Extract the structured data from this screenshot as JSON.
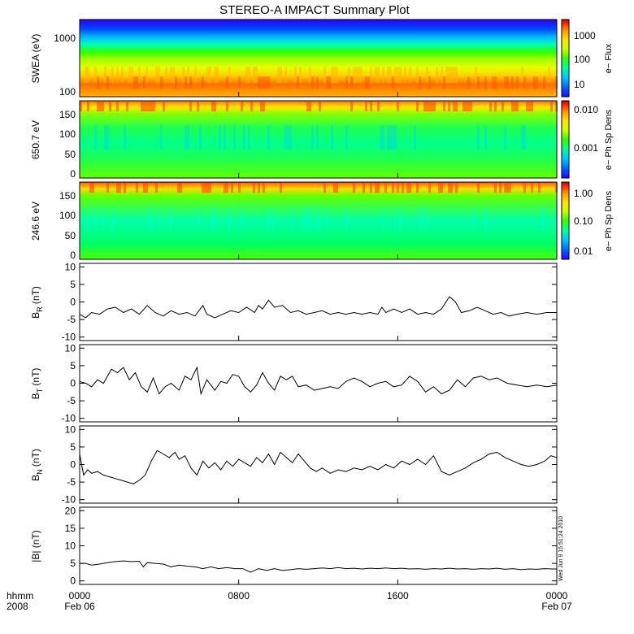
{
  "chart_data": {
    "type": "multi-panel time series / spectrogram",
    "title": "STEREO-A IMPACT Summary Plot",
    "x_axis": {
      "range_hours": [
        0,
        24
      ],
      "ticks": [
        {
          "t": 0,
          "hhmm": "0000",
          "date": "Feb 06"
        },
        {
          "t": 8,
          "hhmm": "0800",
          "date": ""
        },
        {
          "t": 16,
          "hhmm": "1600",
          "date": ""
        },
        {
          "t": 24,
          "hhmm": "0000",
          "date": "Feb 07"
        }
      ],
      "left_label_1": "hhmm",
      "left_label_2": "2008"
    },
    "timestamp": "Wed Jun 9 15:51:24 2010",
    "colorbar_colors": [
      "#2a00ff",
      "#0064ff",
      "#00c8ff",
      "#00ff96",
      "#32ff00",
      "#c8ff00",
      "#ffe600",
      "#ff9600",
      "#ff3200",
      "#d40000"
    ],
    "spectrograms": [
      {
        "id": "swea",
        "ylabel": "SWEA (eV)",
        "yticks": [
          "1000",
          "100"
        ],
        "cb_label": "e− Flux",
        "cb_ticks": [
          "1000",
          "100",
          "10"
        ]
      },
      {
        "id": "pad650",
        "ylabel": "650.7 eV",
        "yticks": [
          "150",
          "100",
          "50",
          "0"
        ],
        "cb_label": "e− Ph Sp Dens",
        "cb_ticks": [
          "0.010",
          "0.001"
        ]
      },
      {
        "id": "pad246",
        "ylabel": "246.6 eV",
        "yticks": [
          "150",
          "100",
          "50",
          "0"
        ],
        "cb_label": "e− Ph Sp Dens",
        "cb_ticks": [
          "1.00",
          "0.10",
          "0.01"
        ]
      }
    ],
    "line_panels": [
      {
        "id": "br",
        "ylabel_base": "B",
        "ylabel_sub": "R",
        "ylabel_unit": "(nT)",
        "ylim": [
          -11,
          11
        ],
        "yticks": [
          10,
          5,
          0,
          -5,
          -10
        ],
        "series": [
          [
            0.0,
            -3.5
          ],
          [
            0.3,
            -4.5
          ],
          [
            0.6,
            -3.0
          ],
          [
            1.0,
            -3.5
          ],
          [
            1.4,
            -2.0
          ],
          [
            1.8,
            -1.5
          ],
          [
            2.2,
            -3.0
          ],
          [
            2.6,
            -2.0
          ],
          [
            3.0,
            -3.5
          ],
          [
            3.4,
            -1.0
          ],
          [
            3.8,
            -3.0
          ],
          [
            4.2,
            -4.0
          ],
          [
            4.6,
            -2.5
          ],
          [
            5.0,
            -3.5
          ],
          [
            5.4,
            -3.0
          ],
          [
            5.8,
            -4.0
          ],
          [
            6.2,
            -1.0
          ],
          [
            6.4,
            -3.5
          ],
          [
            6.8,
            -4.5
          ],
          [
            7.2,
            -3.5
          ],
          [
            7.6,
            -2.5
          ],
          [
            8.0,
            -3.0
          ],
          [
            8.4,
            -1.5
          ],
          [
            8.8,
            -3.0
          ],
          [
            9.0,
            -1.0
          ],
          [
            9.2,
            -2.0
          ],
          [
            9.5,
            0.5
          ],
          [
            9.8,
            -1.5
          ],
          [
            10.2,
            -1.0
          ],
          [
            10.6,
            -3.0
          ],
          [
            11.0,
            -2.5
          ],
          [
            11.4,
            -3.5
          ],
          [
            11.8,
            -3.0
          ],
          [
            12.2,
            -2.5
          ],
          [
            12.6,
            -3.5
          ],
          [
            13.0,
            -3.0
          ],
          [
            13.4,
            -3.5
          ],
          [
            13.8,
            -3.0
          ],
          [
            14.2,
            -3.5
          ],
          [
            14.6,
            -3.0
          ],
          [
            15.0,
            -3.5
          ],
          [
            15.2,
            -1.5
          ],
          [
            15.4,
            -3.0
          ],
          [
            15.8,
            -2.0
          ],
          [
            16.2,
            -3.0
          ],
          [
            16.6,
            -2.0
          ],
          [
            17.0,
            -3.5
          ],
          [
            17.4,
            -3.0
          ],
          [
            17.8,
            -3.5
          ],
          [
            18.2,
            -2.0
          ],
          [
            18.6,
            1.5
          ],
          [
            18.9,
            0.0
          ],
          [
            19.2,
            -3.0
          ],
          [
            19.6,
            -2.5
          ],
          [
            20.0,
            -1.5
          ],
          [
            20.4,
            -2.5
          ],
          [
            20.8,
            -3.5
          ],
          [
            21.2,
            -3.0
          ],
          [
            21.6,
            -4.0
          ],
          [
            22.0,
            -3.5
          ],
          [
            22.5,
            -3.0
          ],
          [
            23.0,
            -3.5
          ],
          [
            23.5,
            -3.0
          ],
          [
            24.0,
            -3.0
          ]
        ]
      },
      {
        "id": "bt",
        "ylabel_base": "B",
        "ylabel_sub": "T",
        "ylabel_unit": "(nT)",
        "ylim": [
          -11,
          11
        ],
        "yticks": [
          10,
          5,
          0,
          -5,
          -10
        ],
        "series": [
          [
            0.0,
            0.5
          ],
          [
            0.3,
            0.0
          ],
          [
            0.6,
            -1.0
          ],
          [
            0.9,
            1.0
          ],
          [
            1.2,
            0.0
          ],
          [
            1.6,
            4.0
          ],
          [
            1.9,
            3.0
          ],
          [
            2.2,
            4.5
          ],
          [
            2.5,
            1.0
          ],
          [
            2.8,
            3.0
          ],
          [
            3.1,
            -1.0
          ],
          [
            3.4,
            -2.5
          ],
          [
            3.7,
            1.5
          ],
          [
            4.0,
            -3.0
          ],
          [
            4.3,
            -1.0
          ],
          [
            4.6,
            0.0
          ],
          [
            5.0,
            -2.0
          ],
          [
            5.3,
            2.0
          ],
          [
            5.6,
            1.0
          ],
          [
            5.9,
            4.5
          ],
          [
            6.1,
            -3.0
          ],
          [
            6.4,
            1.0
          ],
          [
            6.8,
            -2.0
          ],
          [
            7.1,
            0.5
          ],
          [
            7.4,
            0.0
          ],
          [
            7.7,
            2.5
          ],
          [
            8.0,
            2.0
          ],
          [
            8.3,
            -1.0
          ],
          [
            8.6,
            -2.5
          ],
          [
            8.9,
            -0.5
          ],
          [
            9.2,
            3.0
          ],
          [
            9.5,
            0.0
          ],
          [
            9.8,
            -2.0
          ],
          [
            10.1,
            2.0
          ],
          [
            10.4,
            1.0
          ],
          [
            10.7,
            2.0
          ],
          [
            11.0,
            -1.0
          ],
          [
            11.4,
            -0.5
          ],
          [
            11.8,
            -2.0
          ],
          [
            12.2,
            -1.5
          ],
          [
            12.6,
            -1.0
          ],
          [
            13.0,
            -1.5
          ],
          [
            13.4,
            0.5
          ],
          [
            13.8,
            1.5
          ],
          [
            14.2,
            0.5
          ],
          [
            14.6,
            -1.0
          ],
          [
            15.0,
            0.0
          ],
          [
            15.4,
            0.5
          ],
          [
            15.8,
            -1.0
          ],
          [
            16.2,
            -0.5
          ],
          [
            16.6,
            2.0
          ],
          [
            17.0,
            0.5
          ],
          [
            17.4,
            -2.5
          ],
          [
            17.8,
            -1.0
          ],
          [
            18.2,
            -3.0
          ],
          [
            18.6,
            -2.0
          ],
          [
            19.0,
            1.0
          ],
          [
            19.4,
            -1.0
          ],
          [
            19.8,
            1.5
          ],
          [
            20.2,
            2.0
          ],
          [
            20.6,
            1.0
          ],
          [
            21.0,
            1.5
          ],
          [
            21.5,
            0.0
          ],
          [
            22.0,
            -0.5
          ],
          [
            22.5,
            -1.0
          ],
          [
            23.0,
            -0.5
          ],
          [
            23.5,
            -1.0
          ],
          [
            24.0,
            -0.5
          ]
        ]
      },
      {
        "id": "bn",
        "ylabel_base": "B",
        "ylabel_sub": "N",
        "ylabel_unit": "(nT)",
        "ylim": [
          -11,
          11
        ],
        "yticks": [
          10,
          5,
          0,
          -5,
          -10
        ],
        "series": [
          [
            0.0,
            3.0
          ],
          [
            0.2,
            -3.0
          ],
          [
            0.4,
            -1.5
          ],
          [
            0.6,
            -2.5
          ],
          [
            0.9,
            -2.0
          ],
          [
            1.2,
            -3.0
          ],
          [
            1.5,
            -3.5
          ],
          [
            1.8,
            -4.0
          ],
          [
            2.1,
            -4.5
          ],
          [
            2.4,
            -5.0
          ],
          [
            2.7,
            -5.5
          ],
          [
            3.0,
            -4.5
          ],
          [
            3.3,
            -3.0
          ],
          [
            3.6,
            1.0
          ],
          [
            3.9,
            4.0
          ],
          [
            4.2,
            3.0
          ],
          [
            4.5,
            2.0
          ],
          [
            4.8,
            3.5
          ],
          [
            5.0,
            1.5
          ],
          [
            5.3,
            2.5
          ],
          [
            5.6,
            -1.0
          ],
          [
            5.9,
            -3.0
          ],
          [
            6.2,
            1.0
          ],
          [
            6.5,
            -1.0
          ],
          [
            6.8,
            0.5
          ],
          [
            7.1,
            -1.5
          ],
          [
            7.4,
            1.0
          ],
          [
            7.7,
            -0.5
          ],
          [
            8.0,
            1.5
          ],
          [
            8.3,
            0.5
          ],
          [
            8.6,
            -0.5
          ],
          [
            8.9,
            2.0
          ],
          [
            9.2,
            0.5
          ],
          [
            9.5,
            3.0
          ],
          [
            9.8,
            0.0
          ],
          [
            10.1,
            3.5
          ],
          [
            10.4,
            2.0
          ],
          [
            10.7,
            0.5
          ],
          [
            11.0,
            3.0
          ],
          [
            11.3,
            1.0
          ],
          [
            11.6,
            -1.0
          ],
          [
            11.9,
            -2.0
          ],
          [
            12.2,
            -1.0
          ],
          [
            12.6,
            -2.5
          ],
          [
            13.0,
            -1.5
          ],
          [
            13.4,
            -2.0
          ],
          [
            13.8,
            -1.0
          ],
          [
            14.2,
            -1.5
          ],
          [
            14.6,
            -0.5
          ],
          [
            15.0,
            -1.5
          ],
          [
            15.4,
            0.0
          ],
          [
            15.8,
            -1.0
          ],
          [
            16.2,
            1.0
          ],
          [
            16.6,
            0.0
          ],
          [
            17.0,
            1.5
          ],
          [
            17.4,
            0.0
          ],
          [
            17.8,
            2.5
          ],
          [
            18.2,
            -2.0
          ],
          [
            18.6,
            -3.0
          ],
          [
            19.0,
            -2.0
          ],
          [
            19.4,
            -1.0
          ],
          [
            19.8,
            0.5
          ],
          [
            20.2,
            1.5
          ],
          [
            20.6,
            3.0
          ],
          [
            21.0,
            3.5
          ],
          [
            21.4,
            2.0
          ],
          [
            21.8,
            1.0
          ],
          [
            22.2,
            0.0
          ],
          [
            22.6,
            -0.5
          ],
          [
            23.0,
            0.0
          ],
          [
            23.4,
            1.0
          ],
          [
            23.7,
            2.5
          ],
          [
            24.0,
            2.0
          ]
        ]
      },
      {
        "id": "bmag",
        "ylabel_base": "|B|",
        "ylabel_sub": "",
        "ylabel_unit": "(nT)",
        "ylim": [
          -1,
          21
        ],
        "yticks": [
          20,
          15,
          10,
          5,
          0
        ],
        "series": [
          [
            0.0,
            5.0
          ],
          [
            0.3,
            5.0
          ],
          [
            0.6,
            4.5
          ],
          [
            1.0,
            4.8
          ],
          [
            1.4,
            5.2
          ],
          [
            1.8,
            5.5
          ],
          [
            2.2,
            5.7
          ],
          [
            2.6,
            5.5
          ],
          [
            3.0,
            5.6
          ],
          [
            3.2,
            4.0
          ],
          [
            3.4,
            5.2
          ],
          [
            3.8,
            5.0
          ],
          [
            4.2,
            4.8
          ],
          [
            4.6,
            4.0
          ],
          [
            5.0,
            4.5
          ],
          [
            5.4,
            4.2
          ],
          [
            5.8,
            4.0
          ],
          [
            6.2,
            3.5
          ],
          [
            6.6,
            4.0
          ],
          [
            7.0,
            3.5
          ],
          [
            7.4,
            3.8
          ],
          [
            7.8,
            3.5
          ],
          [
            8.2,
            3.5
          ],
          [
            8.6,
            2.5
          ],
          [
            9.0,
            3.5
          ],
          [
            9.4,
            3.0
          ],
          [
            9.8,
            3.5
          ],
          [
            10.2,
            3.0
          ],
          [
            10.6,
            3.2
          ],
          [
            11.0,
            3.5
          ],
          [
            11.4,
            3.3
          ],
          [
            11.8,
            3.5
          ],
          [
            12.2,
            3.7
          ],
          [
            12.6,
            3.5
          ],
          [
            13.0,
            3.8
          ],
          [
            13.4,
            3.5
          ],
          [
            13.8,
            3.6
          ],
          [
            14.2,
            3.4
          ],
          [
            14.6,
            3.6
          ],
          [
            15.0,
            3.5
          ],
          [
            15.4,
            3.7
          ],
          [
            15.8,
            3.5
          ],
          [
            16.2,
            3.6
          ],
          [
            16.6,
            3.4
          ],
          [
            17.0,
            3.5
          ],
          [
            17.4,
            3.3
          ],
          [
            17.8,
            3.5
          ],
          [
            18.2,
            3.4
          ],
          [
            18.6,
            3.6
          ],
          [
            19.0,
            3.4
          ],
          [
            19.4,
            3.5
          ],
          [
            19.8,
            3.3
          ],
          [
            20.2,
            3.5
          ],
          [
            20.6,
            3.4
          ],
          [
            21.0,
            3.6
          ],
          [
            21.4,
            3.3
          ],
          [
            21.8,
            3.5
          ],
          [
            22.2,
            3.2
          ],
          [
            22.6,
            3.4
          ],
          [
            23.0,
            3.3
          ],
          [
            23.4,
            3.5
          ],
          [
            23.8,
            3.4
          ],
          [
            24.0,
            3.4
          ]
        ]
      }
    ]
  }
}
